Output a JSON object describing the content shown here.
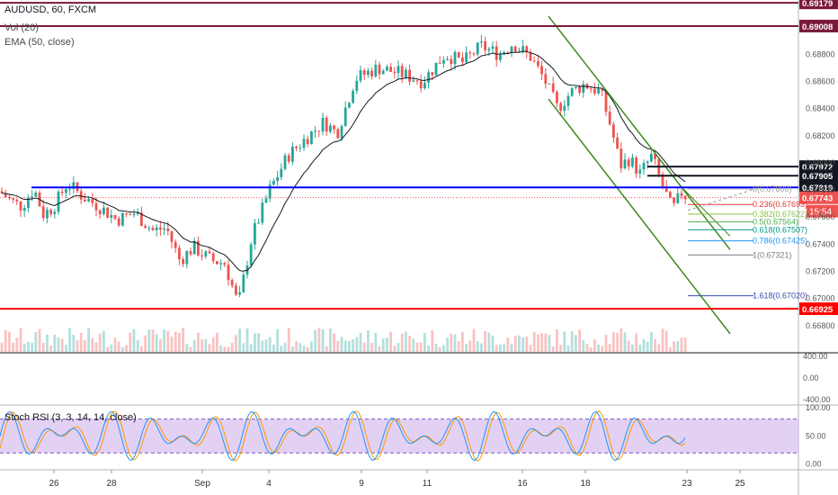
{
  "header": {
    "symbol_line": "AUDUSD, 60, FXCM",
    "volume_line": "Vol (20)",
    "ema_line": "EMA (50, close)"
  },
  "rsi_panel": {
    "title": "Stoch RSI (3, 3, 14, 14, close)"
  },
  "time_countdown": "15:54",
  "colors": {
    "up": "#26a69a",
    "down": "#ef5350",
    "ema": "#131722",
    "channel": "#3c8a1f",
    "support": "#ff0000",
    "resistance": "#7a1a3a",
    "level_blue": "#0000ff",
    "stoch_k": "#2196f3",
    "stoch_d": "#ff9800",
    "rsi_band": "#d9c2f0"
  },
  "chart_data": [
    {
      "type": "candlestick",
      "title": "AUDUSD, 60, FXCM",
      "x_tick_labels": [
        "26",
        "28",
        "Sep",
        "4",
        "9",
        "11",
        "16",
        "18",
        "23",
        "25"
      ],
      "y_tick_labels": [
        "0.68800",
        "0.68600",
        "0.68400",
        "0.68200",
        "0.68000",
        "0.67800",
        "0.67600",
        "0.67400",
        "0.67200",
        "0.67000",
        "0.66800"
      ],
      "ylim": [
        0.666,
        0.692
      ],
      "price_path_approx": [
        [
          0,
          0.6779
        ],
        [
          12,
          0.6772
        ],
        [
          24,
          0.6768
        ],
        [
          38,
          0.6781
        ],
        [
          48,
          0.6762
        ],
        [
          60,
          0.6768
        ],
        [
          75,
          0.6785
        ],
        [
          92,
          0.6775
        ],
        [
          110,
          0.6768
        ],
        [
          130,
          0.6758
        ],
        [
          150,
          0.6763
        ],
        [
          170,
          0.675
        ],
        [
          185,
          0.6752
        ],
        [
          200,
          0.6728
        ],
        [
          215,
          0.6738
        ],
        [
          235,
          0.6728
        ],
        [
          250,
          0.6726
        ],
        [
          265,
          0.6695
        ],
        [
          280,
          0.6745
        ],
        [
          300,
          0.678
        ],
        [
          320,
          0.6805
        ],
        [
          340,
          0.6818
        ],
        [
          360,
          0.683
        ],
        [
          375,
          0.6822
        ],
        [
          395,
          0.6862
        ],
        [
          420,
          0.687
        ],
        [
          445,
          0.6866
        ],
        [
          470,
          0.686
        ],
        [
          495,
          0.688
        ],
        [
          515,
          0.6874
        ],
        [
          535,
          0.6886
        ],
        [
          555,
          0.688
        ],
        [
          570,
          0.6888
        ],
        [
          590,
          0.6878
        ],
        [
          605,
          0.6862
        ],
        [
          620,
          0.684
        ],
        [
          635,
          0.6852
        ],
        [
          650,
          0.6858
        ],
        [
          668,
          0.6852
        ],
        [
          680,
          0.6825
        ],
        [
          690,
          0.6798
        ],
        [
          700,
          0.6803
        ],
        [
          712,
          0.6792
        ],
        [
          725,
          0.6805
        ],
        [
          735,
          0.6786
        ],
        [
          748,
          0.6765
        ],
        [
          758,
          0.6778
        ],
        [
          765,
          0.6774
        ]
      ],
      "horizontal_levels": [
        {
          "label": "0.69179",
          "value": 0.69179,
          "style": "resistance"
        },
        {
          "label": "0.69008",
          "value": 0.69008,
          "style": "resistance"
        },
        {
          "label": "0.67972",
          "value": 0.67972,
          "style": "black"
        },
        {
          "label": "0.67905",
          "value": 0.67905,
          "style": "black"
        },
        {
          "label": "0.67819",
          "value": 0.67819,
          "style": "blue"
        },
        {
          "label": "0.67743",
          "value": 0.67743,
          "style": "current"
        },
        {
          "label": "0.66925",
          "value": 0.66925,
          "style": "support"
        }
      ],
      "fibonacci_retracement": [
        {
          "label": "0(0.67808)",
          "value": 0.67808,
          "color": "#9e9e9e"
        },
        {
          "label": "0.236(0.67693)",
          "value": 0.67693,
          "color": "#e53935"
        },
        {
          "label": "0.382(0.67622)",
          "value": 0.67622,
          "color": "#8bc34a"
        },
        {
          "label": "0.5(0.67564)",
          "value": 0.67564,
          "color": "#4caf50"
        },
        {
          "label": "0.618(0.67507)",
          "value": 0.67507,
          "color": "#009688"
        },
        {
          "label": "0.786(0.67425)",
          "value": 0.67425,
          "color": "#2196f3"
        },
        {
          "label": "1(0.67321)",
          "value": 0.67321,
          "color": "#787b86"
        },
        {
          "label": "1.618(0.67020)",
          "value": 0.6702,
          "color": "#3949ab"
        }
      ]
    },
    {
      "type": "bar",
      "title": "Vol (20)",
      "y_tick_labels": [
        "400.00",
        "0.00",
        "-400.00"
      ]
    },
    {
      "type": "line",
      "title": "Stoch RSI (3, 3, 14, 14, close)",
      "y_tick_labels": [
        "100.00",
        "50.00",
        "0.00"
      ],
      "ylim": [
        -10,
        105
      ],
      "bands": [
        20,
        80
      ]
    }
  ]
}
